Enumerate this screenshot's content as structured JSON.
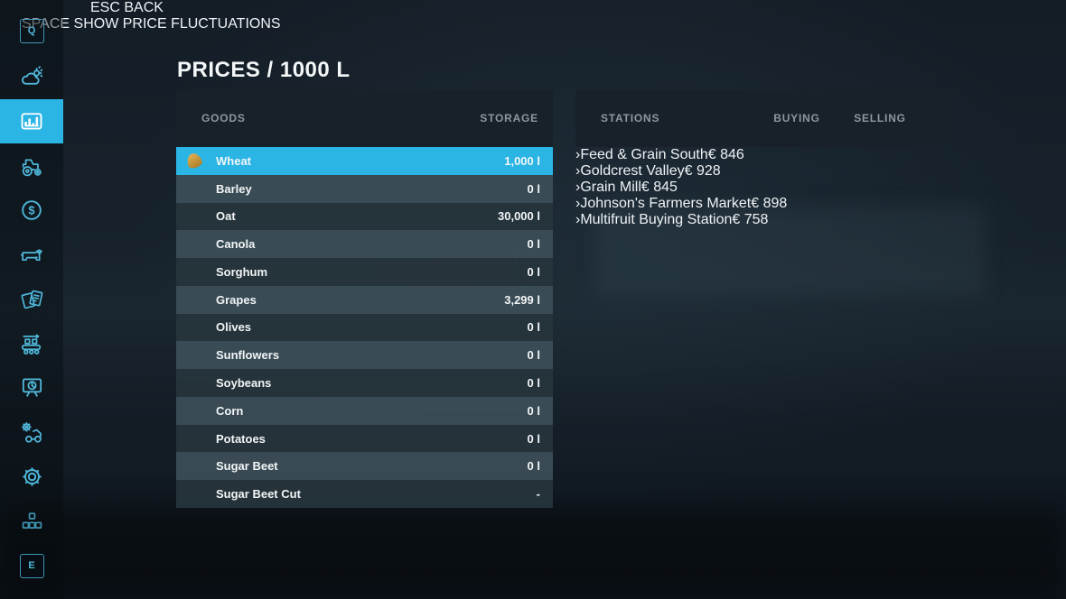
{
  "colors": {
    "accent": "#2ab5e5",
    "icon_cyan": "#4fb7da",
    "trend_up": "#97c21f",
    "trend_down": "#e5383f",
    "header_text": "#8d979e"
  },
  "title": "PRICES / 1000 L",
  "sidebar": {
    "top_key": "Q",
    "bottom_key": "E",
    "items": [
      {
        "id": "weather",
        "icon": "weather-icon",
        "selected": false
      },
      {
        "id": "prices",
        "icon": "prices-chart-icon",
        "selected": true
      },
      {
        "id": "vehicles",
        "icon": "tractor-icon",
        "selected": false
      },
      {
        "id": "finances",
        "icon": "dollar-icon",
        "selected": false
      },
      {
        "id": "animals",
        "icon": "cow-icon",
        "selected": false
      },
      {
        "id": "contracts",
        "icon": "contracts-icon",
        "selected": false
      },
      {
        "id": "production",
        "icon": "production-chain-icon",
        "selected": false
      },
      {
        "id": "statistics",
        "icon": "statistics-board-icon",
        "selected": false
      },
      {
        "id": "maintenance",
        "icon": "maintenance-icon",
        "selected": false
      },
      {
        "id": "settings",
        "icon": "gear-icon",
        "selected": false
      },
      {
        "id": "mods",
        "icon": "mods-icon",
        "selected": false
      }
    ]
  },
  "goods": {
    "headers": {
      "goods": "GOODS",
      "storage": "STORAGE"
    },
    "rows": [
      {
        "name": "Wheat",
        "storage": "1,000 l",
        "icon": "wheat-icon",
        "selected": true
      },
      {
        "name": "Barley",
        "storage": "0 l",
        "icon": "barley-icon",
        "selected": false
      },
      {
        "name": "Oat",
        "storage": "30,000 l",
        "icon": "oat-icon",
        "selected": false
      },
      {
        "name": "Canola",
        "storage": "0 l",
        "icon": "canola-icon",
        "selected": false
      },
      {
        "name": "Sorghum",
        "storage": "0 l",
        "icon": "sorghum-icon",
        "selected": false
      },
      {
        "name": "Grapes",
        "storage": "3,299 l",
        "icon": "grapes-icon",
        "selected": false
      },
      {
        "name": "Olives",
        "storage": "0 l",
        "icon": "olives-icon",
        "selected": false
      },
      {
        "name": "Sunflowers",
        "storage": "0 l",
        "icon": "sunflowers-icon",
        "selected": false
      },
      {
        "name": "Soybeans",
        "storage": "0 l",
        "icon": "soybeans-icon",
        "selected": false
      },
      {
        "name": "Corn",
        "storage": "0 l",
        "icon": "corn-icon",
        "selected": false
      },
      {
        "name": "Potatoes",
        "storage": "0 l",
        "icon": "potatoes-icon",
        "selected": false
      },
      {
        "name": "Sugar Beet",
        "storage": "0 l",
        "icon": "sugar-beet-icon",
        "selected": false
      },
      {
        "name": "Sugar Beet Cut",
        "storage": "-",
        "icon": "sugar-beet-cut-icon",
        "selected": false
      }
    ]
  },
  "stations": {
    "headers": {
      "stations": "STATIONS",
      "buying": "BUYING",
      "selling": "SELLING"
    },
    "rows": [
      {
        "name": "Feed & Grain South",
        "trend": "up",
        "buying": "€ 846",
        "selling": ""
      },
      {
        "name": "Goldcrest Valley",
        "trend": "up",
        "buying": "€ 928",
        "selling": ""
      },
      {
        "name": "Grain Mill",
        "trend": "up",
        "buying": "€ 845",
        "selling": ""
      },
      {
        "name": "Johnson's Farmers Market",
        "trend": "down",
        "buying": "€ 898",
        "selling": ""
      },
      {
        "name": "Multifruit Buying Station",
        "trend": "",
        "buying": "",
        "selling": "€ 758"
      }
    ]
  },
  "footer": {
    "back_key": "ESC",
    "back_label": "BACK",
    "fluctuations_key": "SPACE",
    "fluctuations_label": "SHOW PRICE FLUCTUATIONS"
  }
}
